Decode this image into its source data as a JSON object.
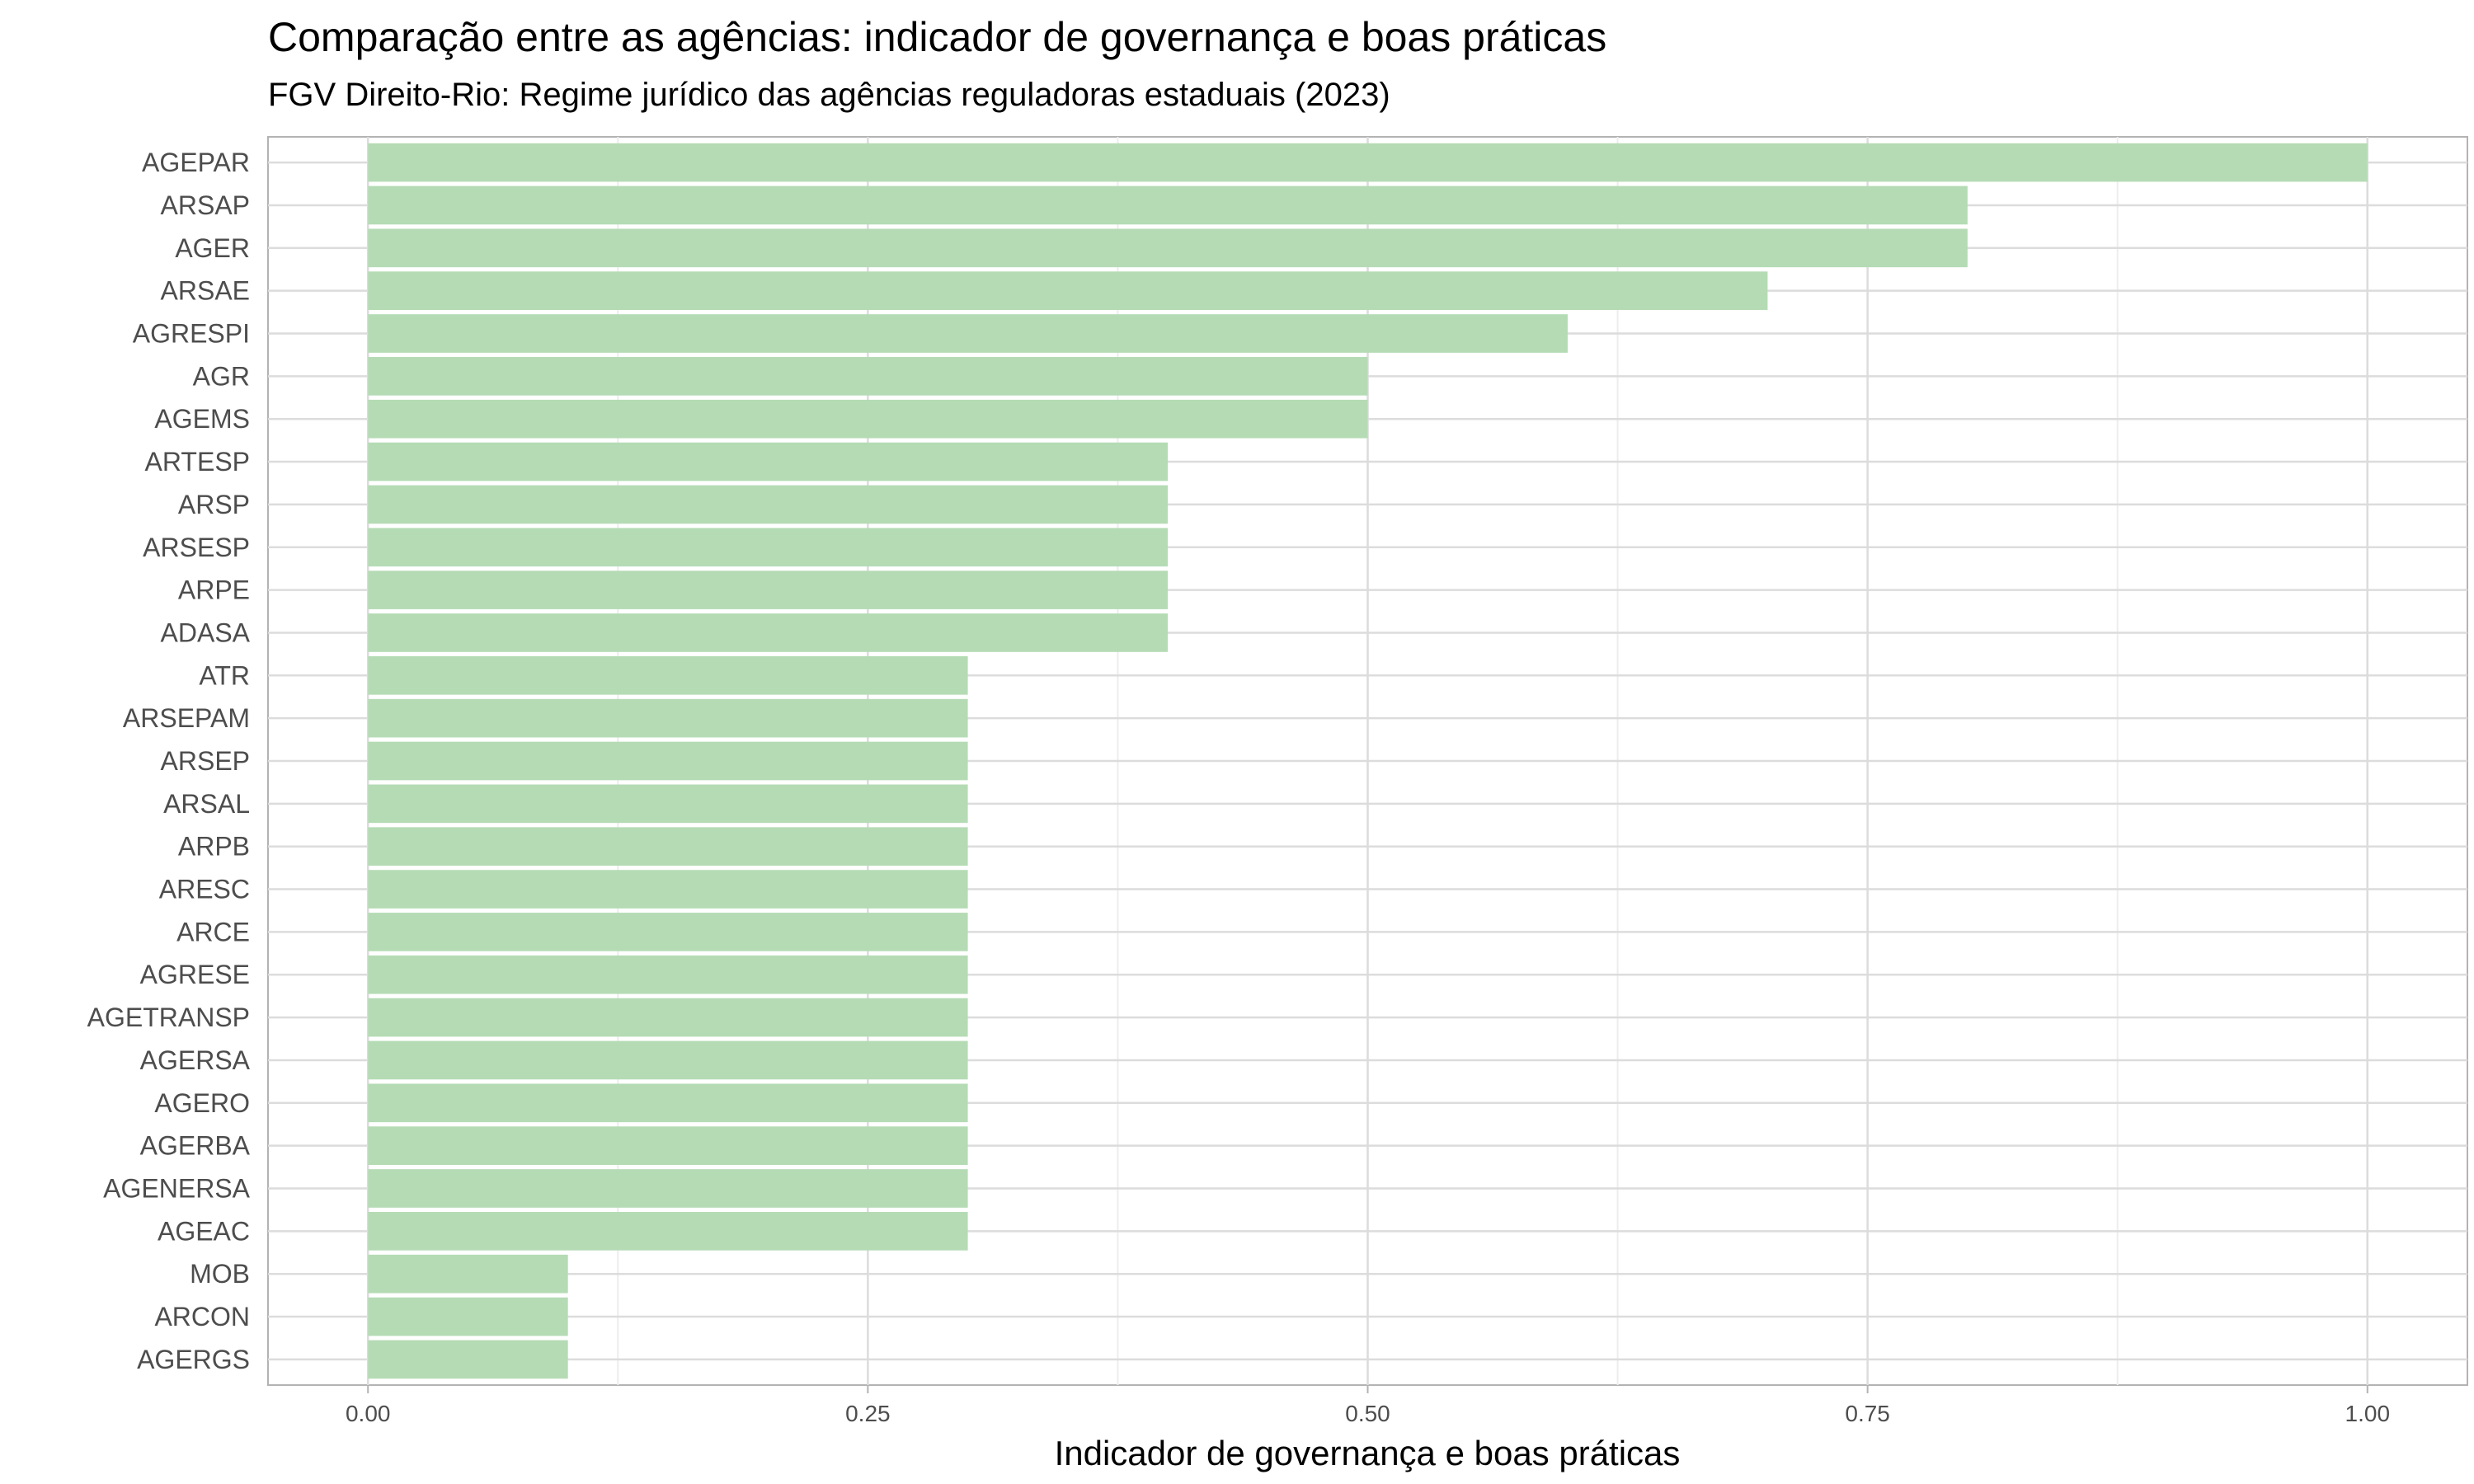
{
  "chart_data": {
    "type": "bar",
    "orientation": "horizontal",
    "title": "Comparação entre as agências: indicador de governança e boas práticas",
    "subtitle": "FGV Direito-Rio: Regime jurídico das agências reguladoras estaduais (2023)",
    "xlabel": "Indicador de governança e boas práticas",
    "ylabel": "",
    "xlim": [
      -0.05,
      1.05
    ],
    "xticks": [
      0.0,
      0.25,
      0.5,
      0.75,
      1.0
    ],
    "xtick_labels": [
      "0.00",
      "0.25",
      "0.50",
      "0.75",
      "1.00"
    ],
    "grid": true,
    "bar_color": "#b5dbb5",
    "categories": [
      "AGEPAR",
      "ARSAP",
      "AGER",
      "ARSAE",
      "AGRESPI",
      "AGR",
      "AGEMS",
      "ARTESP",
      "ARSP",
      "ARSESP",
      "ARPE",
      "ADASA",
      "ATR",
      "ARSEPAM",
      "ARSEP",
      "ARSAL",
      "ARPB",
      "ARESC",
      "ARCE",
      "AGRESE",
      "AGETRANSP",
      "AGERSA",
      "AGERO",
      "AGERBA",
      "AGENERSA",
      "AGEAC",
      "MOB",
      "ARCON",
      "AGERGS"
    ],
    "values": [
      1.0,
      0.8,
      0.8,
      0.7,
      0.6,
      0.5,
      0.5,
      0.4,
      0.4,
      0.4,
      0.4,
      0.4,
      0.3,
      0.3,
      0.3,
      0.3,
      0.3,
      0.3,
      0.3,
      0.3,
      0.3,
      0.3,
      0.3,
      0.3,
      0.3,
      0.3,
      0.1,
      0.1,
      0.1
    ]
  }
}
